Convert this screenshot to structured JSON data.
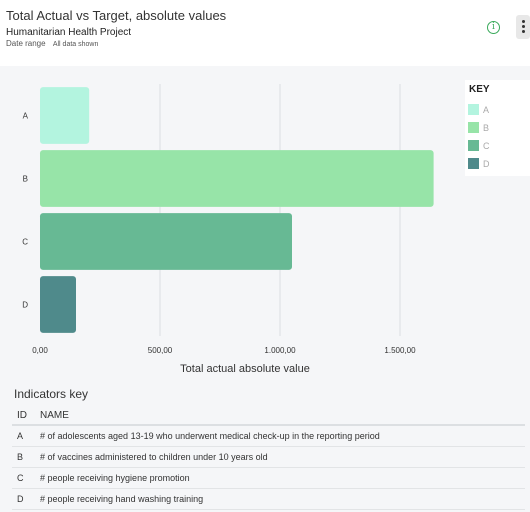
{
  "header": {
    "title": "Total Actual vs Target, absolute values",
    "subtitle": "Humanitarian Health Project",
    "date_range_label": "Date range",
    "date_range_value": "All data shown"
  },
  "chart_data": {
    "type": "bar",
    "orientation": "horizontal",
    "categories": [
      "A",
      "B",
      "C",
      "D"
    ],
    "values": [
      205,
      1640,
      1050,
      150
    ],
    "colors": [
      "#b3f4df",
      "#97e4a8",
      "#67b994",
      "#4f8a8b"
    ],
    "xlabel": "Total actual absolute value",
    "ylabel": "",
    "xlim": [
      0,
      1750
    ],
    "xticks": [
      0,
      500,
      1000,
      1500
    ],
    "xtick_labels": [
      "0,00",
      "500,00",
      "1.000,00",
      "1.500,00"
    ],
    "grid": true,
    "legend_position": "right"
  },
  "legend": {
    "title": "KEY",
    "items": [
      {
        "label": "A",
        "color": "#b3f4df"
      },
      {
        "label": "B",
        "color": "#97e4a8"
      },
      {
        "label": "C",
        "color": "#67b994"
      },
      {
        "label": "D",
        "color": "#4f8a8b"
      }
    ]
  },
  "indicators": {
    "title": "Indicators key",
    "col_id": "ID",
    "col_name": "NAME",
    "rows": [
      {
        "id": "A",
        "name": "# of adolescents aged 13-19 who underwent medical check-up in the reporting period"
      },
      {
        "id": "B",
        "name": "# of vaccines administered to children under 10 years old"
      },
      {
        "id": "C",
        "name": "# people receiving hygiene promotion"
      },
      {
        "id": "D",
        "name": "# people receiving hand washing training"
      }
    ]
  }
}
